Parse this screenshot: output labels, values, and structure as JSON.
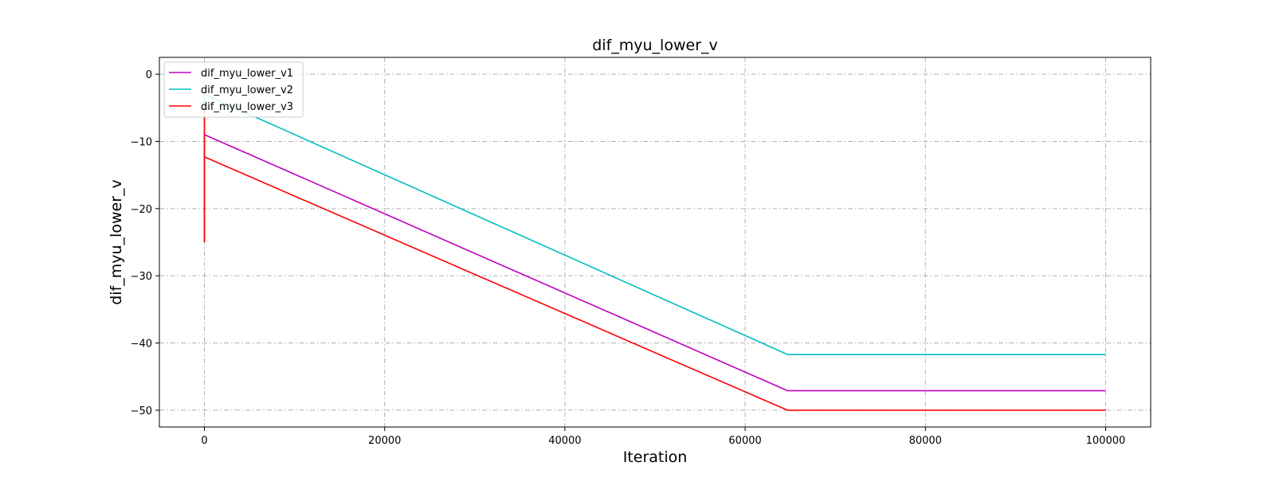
{
  "chart_data": {
    "type": "line",
    "title": "dif_myu_lower_v",
    "xlabel": "Iteration",
    "ylabel": "dif_myu_lower_v",
    "xlim": [
      -5000,
      105000
    ],
    "ylim": [
      -52.5,
      2.5
    ],
    "xticks": [
      0,
      20000,
      40000,
      60000,
      80000,
      100000
    ],
    "yticks": [
      0,
      -10,
      -20,
      -30,
      -40,
      -50
    ],
    "grid": true,
    "legend_position": "top-left",
    "series": [
      {
        "name": "dif_myu_lower_v1",
        "color": "#bf00bf",
        "x": [
          0,
          0,
          0,
          64700,
          100000
        ],
        "y": [
          -25,
          -9,
          -9,
          -47.1,
          -47.1
        ]
      },
      {
        "name": "dif_myu_lower_v2",
        "color": "#00bfbf",
        "x": [
          0,
          0,
          0,
          64700,
          100000
        ],
        "y": [
          -25,
          -3,
          -3,
          -41.7,
          -41.7
        ]
      },
      {
        "name": "dif_myu_lower_v3",
        "color": "#ff0000",
        "x": [
          0,
          0,
          0,
          64700,
          100000
        ],
        "y": [
          -25,
          -5,
          -12.3,
          -50,
          -50
        ]
      }
    ]
  }
}
